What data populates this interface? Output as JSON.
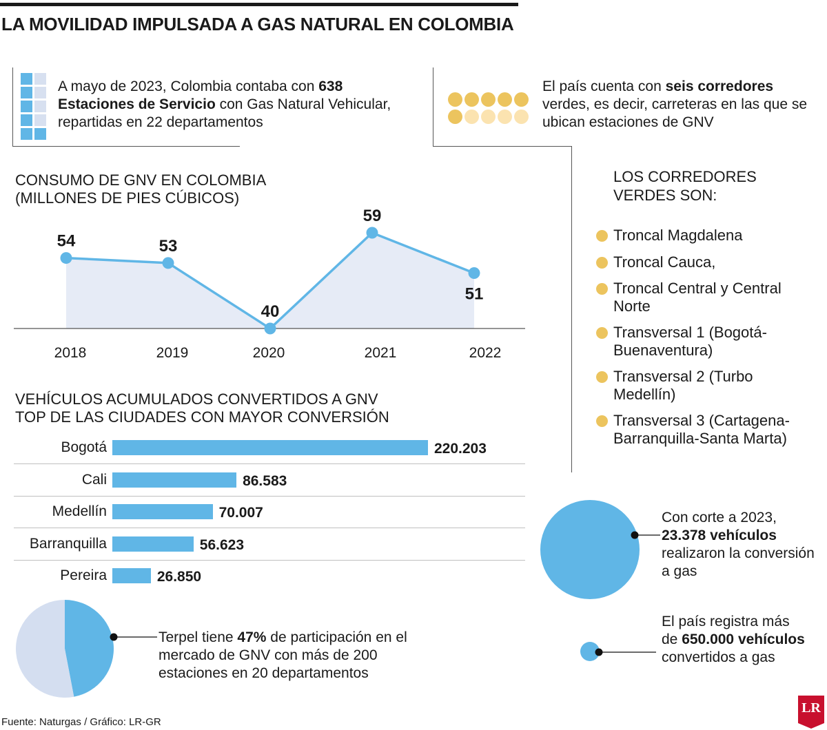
{
  "title": "LA MOVILIDAD IMPULSADA A GAS NATURAL EN COLOMBIA",
  "stations": {
    "pre": "A mayo de 2023, Colombia contaba con ",
    "bold": "638 Estaciones de Servicio",
    "post": " con Gas Natural Vehicular, repartidas en 22 departamentos"
  },
  "corridors_intro": {
    "pre": "El país cuenta con ",
    "bold": "seis corredores",
    "post": " verdes, es decir, carreteras en las que se ubican estaciones de GNV"
  },
  "corridors": {
    "title": "LOS CORREDORES VERDES SON:",
    "items": [
      "Troncal Magdalena",
      "Troncal Cauca,",
      "Troncal Central y Central Norte",
      "Transversal 1 (Bogotá-Buenaventura)",
      "Transversal 2 (Turbo Medellín)",
      "Transversal 3 (Cartagena-Barranquilla-Santa Marta)"
    ]
  },
  "colors": {
    "blue": "#60b6e6",
    "light_blue": "#d7e0f0",
    "area_fill": "#e6ebf6",
    "gold": "#ecc45e",
    "light_gold": "#fbe3b0",
    "pie_rest": "#d4def0"
  },
  "chart_data": [
    {
      "type": "line",
      "title": "CONSUMO DE GNV EN COLOMBIA",
      "subtitle": "(MILLONES DE PIES CÚBICOS)",
      "x": [
        "2018",
        "2019",
        "2020",
        "2021",
        "2022"
      ],
      "values": [
        54,
        53,
        40,
        59,
        51
      ],
      "data_labels": true,
      "area_fill": true,
      "grid": false
    },
    {
      "type": "bar",
      "orientation": "horizontal",
      "title": "VEHÍCULOS ACUMULADOS CONVERTIDOS A GNV",
      "subtitle": "TOP DE LAS CIUDADES CON MAYOR CONVERSIÓN",
      "categories": [
        "Bogotá",
        "Cali",
        "Medellín",
        "Barranquilla",
        "Pereira"
      ],
      "values": [
        220203,
        86583,
        70007,
        56623,
        26850
      ],
      "value_labels": [
        "220.203",
        "86.583",
        "70.007",
        "56.623",
        "26.850"
      ]
    },
    {
      "type": "pie",
      "slices": [
        {
          "label": "Terpel",
          "value": 47
        },
        {
          "label": "",
          "value": 53
        }
      ]
    }
  ],
  "terpel": {
    "pre": "Terpel tiene ",
    "bold": "47%",
    "post": " de participación en el mercado de GNV con más de 200 estaciones en 20 departamentos"
  },
  "conversion_2023": {
    "pre": "Con corte a 2023,",
    "bold": "23.378 vehículos",
    "post": "realizaron la conversión a gas",
    "value": 23378
  },
  "total_converted": {
    "pre": "El país registra más de ",
    "bold": "650.000 vehículos",
    "post": " convertidos a gas",
    "value": 650000
  },
  "source": "Fuente: Naturgas / Gráfico: LR-GR",
  "logo_text": "LR"
}
